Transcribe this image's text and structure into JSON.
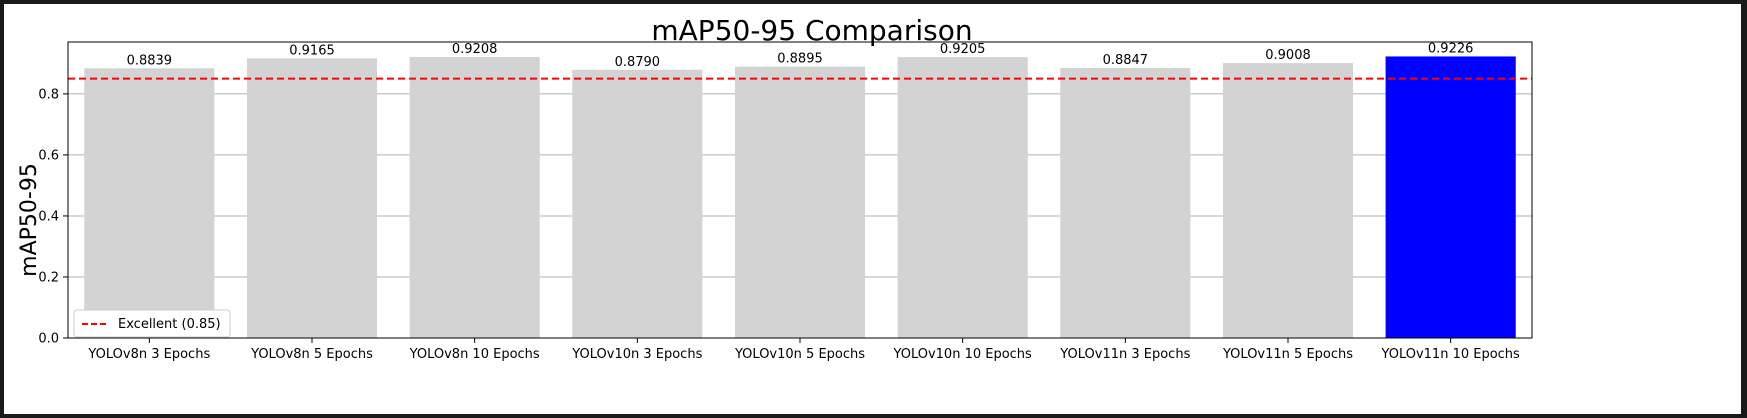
{
  "chart_data": {
    "type": "bar",
    "title": "mAP50-95 Comparison",
    "xlabel": "",
    "ylabel": "mAP50-95",
    "ylim": [
      0,
      0.97
    ],
    "yticks": [
      0.0,
      0.2,
      0.4,
      0.6,
      0.8
    ],
    "ytick_labels": [
      "0.0",
      "0.2",
      "0.4",
      "0.6",
      "0.8"
    ],
    "grid": "y",
    "categories": [
      "YOLOv8n 3 Epochs",
      "YOLOv8n 5 Epochs",
      "YOLOv8n 10 Epochs",
      "YOLOv10n 3 Epochs",
      "YOLOv10n 5 Epochs",
      "YOLOv10n 10 Epochs",
      "YOLOv11n 3 Epochs",
      "YOLOv11n 5 Epochs",
      "YOLOv11n 10 Epochs"
    ],
    "values": [
      0.8839,
      0.9165,
      0.9208,
      0.879,
      0.8895,
      0.9205,
      0.8847,
      0.9008,
      0.9226
    ],
    "value_labels": [
      "0.8839",
      "0.9165",
      "0.9208",
      "0.8790",
      "0.8895",
      "0.9205",
      "0.8847",
      "0.9008",
      "0.9226"
    ],
    "bar_color": "#d3d3d3",
    "highlight_index": 8,
    "highlight_color": "#0000ff",
    "reference_line": {
      "value": 0.85,
      "label": "Excellent (0.85)",
      "color": "#ff0000",
      "style": "dashed"
    },
    "legend_position": "lower-left"
  }
}
